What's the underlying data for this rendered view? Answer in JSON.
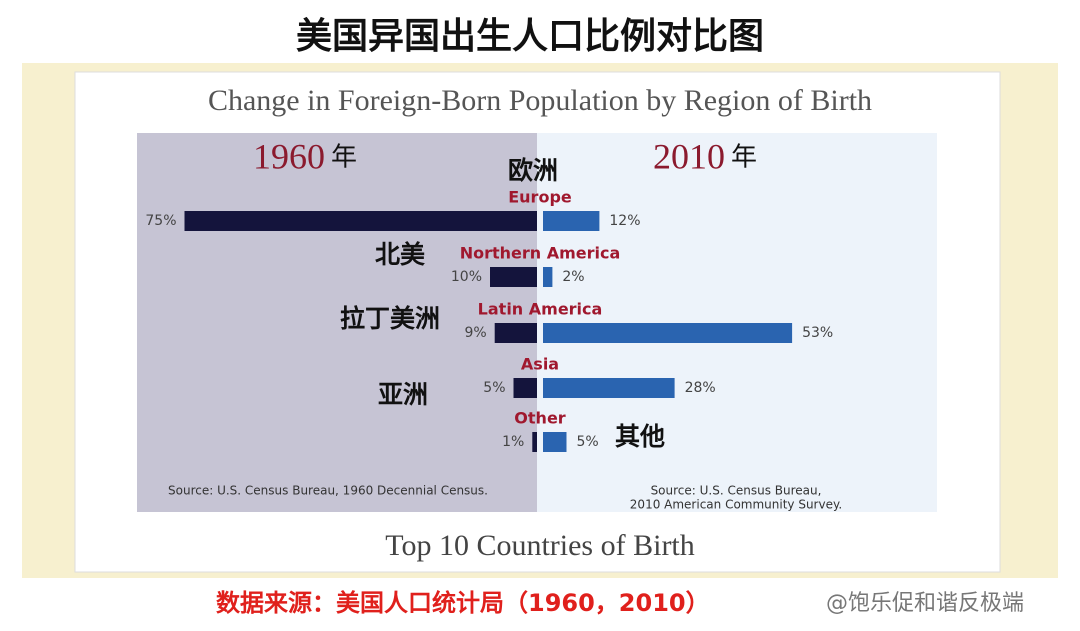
{
  "header": {
    "title": "美国异国出生人口比例对比图"
  },
  "chart_data": {
    "type": "butterfly",
    "title": "Change in Foreign-Born Population by Region of Birth",
    "categories": [
      "Europe",
      "Northern America",
      "Latin America",
      "Asia",
      "Other"
    ],
    "category_labels_zh": [
      "欧洲",
      "北美",
      "拉丁美洲",
      "亚洲",
      "其他"
    ],
    "series": [
      {
        "name": "1960",
        "unit_label": "年",
        "color": "#14143c",
        "values": [
          75,
          10,
          9,
          5,
          1
        ],
        "value_labels": [
          "75%",
          "10%",
          "9%",
          "5%",
          "1%"
        ]
      },
      {
        "name": "2010",
        "unit_label": "年",
        "color": "#2a64b0",
        "values": [
          12,
          2,
          53,
          28,
          5
        ],
        "value_labels": [
          "12%",
          "2%",
          "53%",
          "28%",
          "5%"
        ]
      }
    ],
    "sources": [
      [
        "Source:  U.S. Census Bureau, 1960 Decennial Census."
      ],
      [
        "Source:  U.S. Census Bureau,",
        "2010 American Community Survey."
      ]
    ],
    "next_title": "Top 10 Countries of Birth"
  },
  "footer": {
    "note": "数据来源：美国人口统计局（1960，2010）",
    "watermark": "@饱乐促和谐反极端"
  }
}
